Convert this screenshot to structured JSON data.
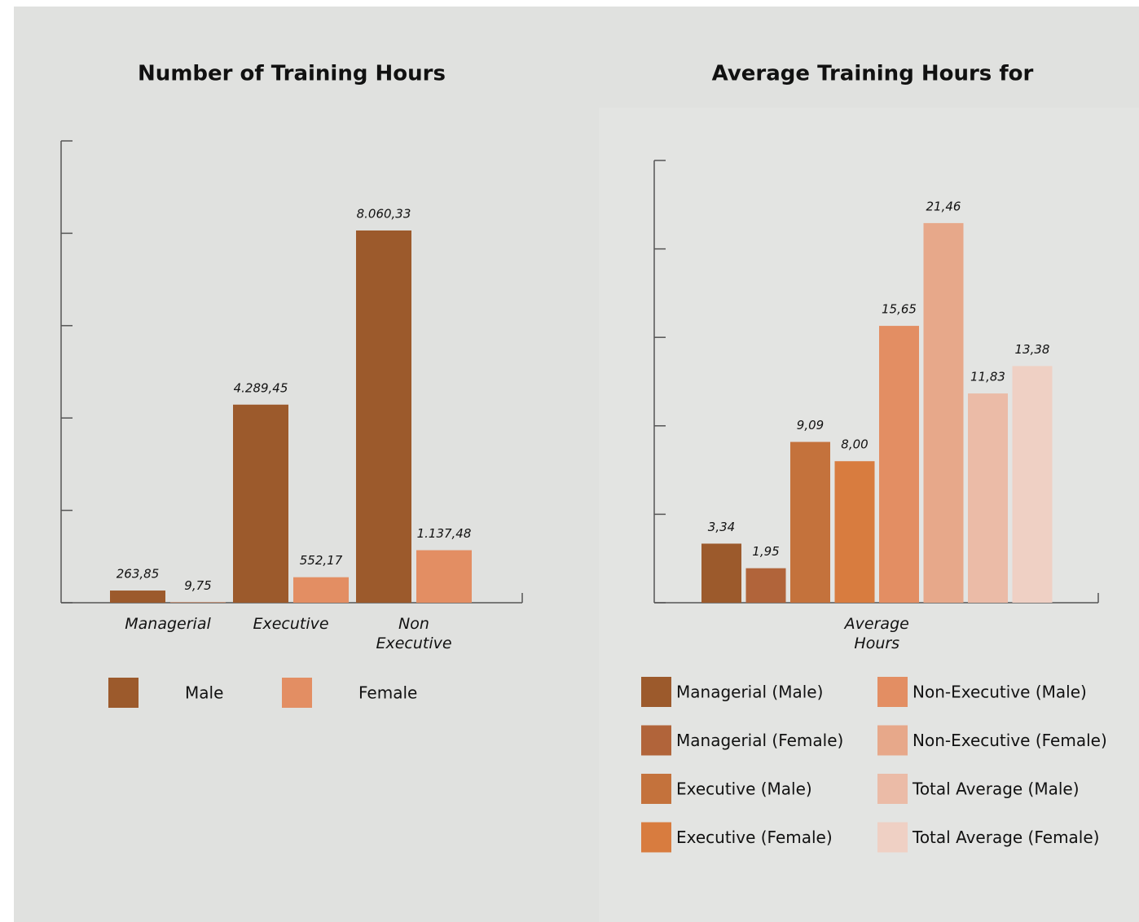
{
  "chart_data": [
    {
      "type": "bar",
      "title": "Number of Training Hours",
      "categories": [
        "Managerial",
        "Executive",
        "Non Executive"
      ],
      "series": [
        {
          "name": "Male",
          "color": "#9c5a2c",
          "values": [
            263.85,
            4289.45,
            8060.33
          ],
          "value_labels": [
            "263,85",
            "4.289,45",
            "8.060,33"
          ]
        },
        {
          "name": "Female",
          "color": "#e38e63",
          "values": [
            9.75,
            552.17,
            1137.48
          ],
          "value_labels": [
            "9,75",
            "552,17",
            "1.137,48"
          ]
        }
      ],
      "ylim": [
        0,
        10000
      ],
      "yticks": [
        0,
        2000,
        4000,
        6000,
        8000,
        10000
      ]
    },
    {
      "type": "bar",
      "title": "Average Training Hours for",
      "categories": [
        "Average Hours"
      ],
      "series": [
        {
          "name": "Managerial (Male)",
          "color": "#9c5a2c",
          "values": [
            3.34
          ],
          "value_labels": [
            "3,34"
          ]
        },
        {
          "name": "Managerial (Female)",
          "color": "#b1643a",
          "values": [
            1.95
          ],
          "value_labels": [
            "1,95"
          ]
        },
        {
          "name": "Executive (Male)",
          "color": "#c4723c",
          "values": [
            9.09
          ],
          "value_labels": [
            "9,09"
          ]
        },
        {
          "name": "Executive (Female)",
          "color": "#d87c3f",
          "values": [
            8.0
          ],
          "value_labels": [
            "8,00"
          ]
        },
        {
          "name": "Non-Executive (Male)",
          "color": "#e38e63",
          "values": [
            15.65
          ],
          "value_labels": [
            "15,65"
          ]
        },
        {
          "name": "Non-Executive (Female)",
          "color": "#e7a88a",
          "values": [
            21.46
          ],
          "value_labels": [
            "21,46"
          ]
        },
        {
          "name": "Total Average (Male)",
          "color": "#ebbba7",
          "values": [
            11.83
          ],
          "value_labels": [
            "11,83"
          ]
        },
        {
          "name": "Total Average (Female)",
          "color": "#efd0c4",
          "values": [
            13.38
          ],
          "value_labels": [
            "13,38"
          ]
        }
      ],
      "ylim": [
        0,
        25
      ],
      "yticks": [
        0,
        5,
        10,
        15,
        20,
        25
      ]
    }
  ]
}
